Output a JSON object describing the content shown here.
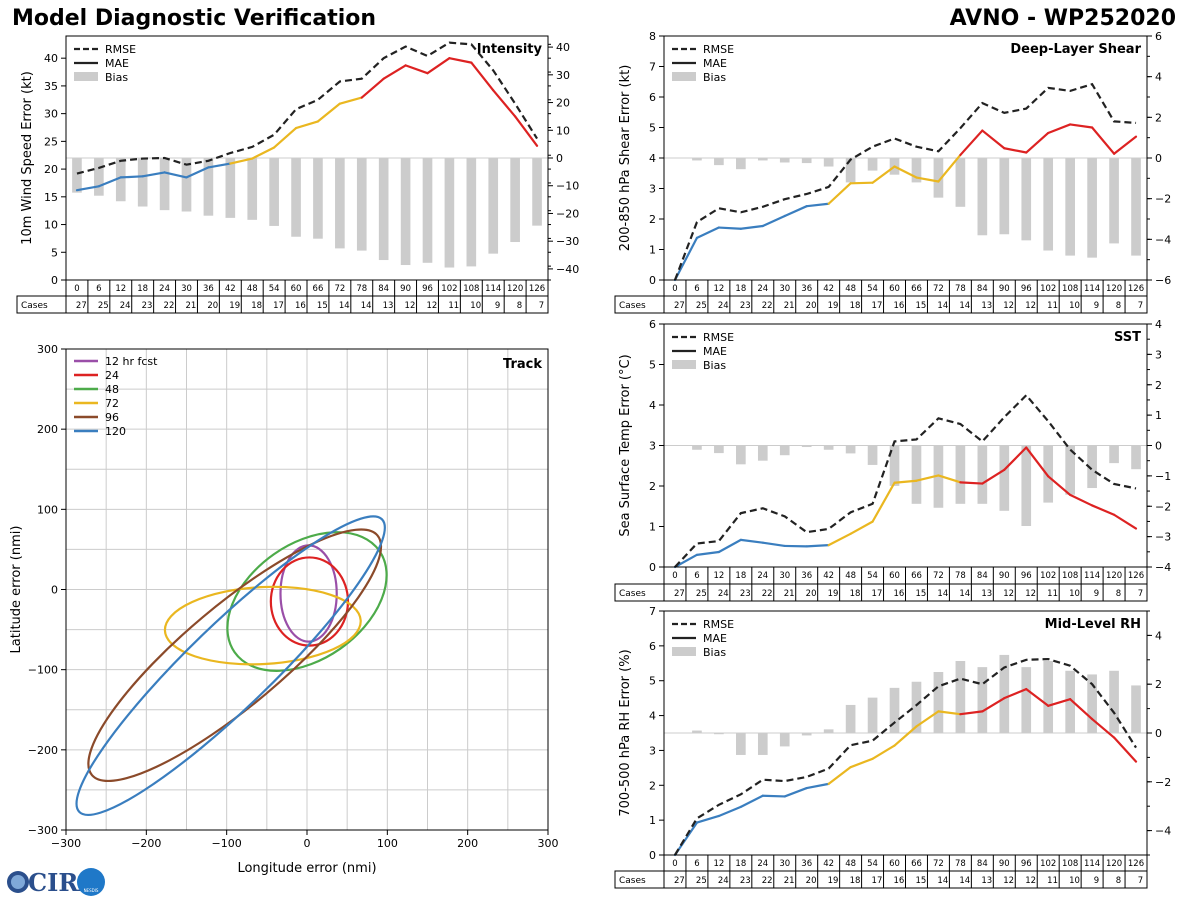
{
  "header": {
    "title": "Model Diagnostic Verification",
    "model_storm": "AVNO - WP252020"
  },
  "logo": {
    "text": "CIRA",
    "small_text": "NESDIS"
  },
  "colors": {
    "rmse": "#222222",
    "bias": "#cccccc",
    "blue": "#3a7ebf",
    "yellow": "#eab720",
    "red": "#dd2222",
    "purple": "#9a4fa8",
    "green": "#4dab4a",
    "brown": "#8b4a2a",
    "grid": "#cccccc"
  },
  "legend": {
    "rmse": "RMSE",
    "mae": "MAE",
    "bias": "Bias"
  },
  "cases_label": "Cases",
  "chart_data": [
    {
      "id": "intensity",
      "type": "line",
      "title": "Intensity",
      "ylabel": "10m Wind Speed Error (kt)",
      "ylim": [
        0,
        44
      ],
      "yticks": [
        0,
        5,
        10,
        15,
        20,
        25,
        30,
        35,
        40
      ],
      "bias_lim": [
        -44,
        44
      ],
      "bias_ticks": [
        -40,
        -30,
        -20,
        -10,
        0,
        10,
        20,
        30,
        40
      ],
      "x": [
        0,
        6,
        12,
        18,
        24,
        30,
        36,
        42,
        48,
        54,
        60,
        66,
        72,
        78,
        84,
        90,
        96,
        102,
        108,
        114,
        120,
        126
      ],
      "cases": [
        27,
        25,
        24,
        23,
        22,
        21,
        20,
        19,
        18,
        17,
        16,
        15,
        14,
        14,
        13,
        12,
        12,
        11,
        10,
        9,
        8,
        7
      ],
      "rmse": [
        19.2,
        20.2,
        21.5,
        21.9,
        22.0,
        20.8,
        21.5,
        22.9,
        24.0,
        26.2,
        30.8,
        32.5,
        35.8,
        36.3,
        40.0,
        42.1,
        40.4,
        42.8,
        42.5,
        37.8,
        31.8,
        25.5
      ],
      "mae": [
        16.2,
        16.9,
        18.5,
        18.7,
        19.4,
        18.5,
        20.3,
        21.0,
        21.9,
        23.9,
        27.4,
        28.6,
        31.8,
        32.9,
        36.3,
        38.7,
        37.3,
        40.0,
        39.2,
        34.2,
        29.5,
        24.2
      ],
      "bias": [
        -12.5,
        -13.6,
        -15.6,
        -17.5,
        -18.8,
        -19.3,
        -20.8,
        -21.6,
        -22.3,
        -24.5,
        -28.4,
        -29.1,
        -32.6,
        -33.4,
        -36.8,
        -38.6,
        -37.8,
        -39.5,
        -39.1,
        -34.5,
        -30.3,
        -24.4
      ]
    },
    {
      "id": "shear",
      "type": "line",
      "title": "Deep-Layer Shear",
      "ylabel": "200-850 hPa Shear Error (kt)",
      "ylim": [
        0,
        8
      ],
      "yticks": [
        0,
        1,
        2,
        3,
        4,
        5,
        6,
        7,
        8
      ],
      "bias_lim": [
        -6,
        6
      ],
      "bias_ticks": [
        -6,
        -4,
        -2,
        0,
        2,
        4,
        6
      ],
      "x": [
        0,
        6,
        12,
        18,
        24,
        30,
        36,
        42,
        48,
        54,
        60,
        66,
        72,
        78,
        84,
        90,
        96,
        102,
        108,
        114,
        120,
        126
      ],
      "cases": [
        27,
        25,
        24,
        23,
        22,
        21,
        20,
        19,
        18,
        17,
        16,
        15,
        14,
        14,
        13,
        12,
        12,
        11,
        10,
        9,
        8,
        7
      ],
      "rmse": [
        0,
        1.9,
        2.35,
        2.22,
        2.4,
        2.65,
        2.82,
        3.05,
        3.95,
        4.37,
        4.64,
        4.37,
        4.22,
        4.98,
        5.8,
        5.48,
        5.62,
        6.3,
        6.2,
        6.42,
        5.2,
        5.15
      ],
      "mae": [
        0,
        1.38,
        1.72,
        1.68,
        1.77,
        2.1,
        2.42,
        2.5,
        3.17,
        3.19,
        3.72,
        3.36,
        3.23,
        4.1,
        4.9,
        4.32,
        4.18,
        4.82,
        5.1,
        5.0,
        4.14,
        4.7
      ],
      "bias": [
        0,
        -0.12,
        -0.35,
        -0.55,
        -0.12,
        -0.22,
        -0.25,
        -0.42,
        -1.2,
        -0.62,
        -0.82,
        -1.2,
        -1.95,
        -2.4,
        -3.8,
        -3.75,
        -4.05,
        -4.55,
        -4.8,
        -4.9,
        -4.2,
        -4.8
      ]
    },
    {
      "id": "sst",
      "type": "line",
      "title": "SST",
      "ylabel": "Sea Surface Temp Error (°C)",
      "ylim": [
        0,
        6
      ],
      "yticks": [
        0,
        1,
        2,
        3,
        4,
        5,
        6
      ],
      "bias_lim": [
        -4,
        4
      ],
      "bias_ticks": [
        -4,
        -3,
        -2,
        -1,
        0,
        1,
        2,
        3,
        4
      ],
      "x": [
        0,
        6,
        12,
        18,
        24,
        30,
        36,
        42,
        48,
        54,
        60,
        66,
        72,
        78,
        84,
        90,
        96,
        102,
        108,
        114,
        120,
        126
      ],
      "cases": [
        27,
        25,
        24,
        23,
        22,
        21,
        20,
        19,
        18,
        17,
        16,
        15,
        14,
        14,
        13,
        12,
        12,
        11,
        10,
        9,
        8,
        7
      ],
      "rmse": [
        0,
        0.58,
        0.64,
        1.33,
        1.45,
        1.25,
        0.86,
        0.94,
        1.35,
        1.56,
        3.1,
        3.15,
        3.67,
        3.53,
        3.1,
        3.7,
        4.24,
        3.6,
        2.9,
        2.4,
        2.05,
        1.94
      ],
      "mae": [
        0,
        0.3,
        0.37,
        0.67,
        0.6,
        0.52,
        0.51,
        0.54,
        0.82,
        1.12,
        2.08,
        2.13,
        2.26,
        2.09,
        2.06,
        2.4,
        2.95,
        2.24,
        1.78,
        1.52,
        1.29,
        0.95
      ],
      "bias": [
        0,
        -0.14,
        -0.25,
        -0.62,
        -0.5,
        -0.32,
        -0.05,
        -0.14,
        -0.26,
        -0.64,
        -1.33,
        -1.92,
        -2.05,
        -1.92,
        -1.92,
        -2.15,
        -2.65,
        -1.88,
        -1.62,
        -1.4,
        -0.58,
        -0.78
      ]
    },
    {
      "id": "rh",
      "type": "line",
      "title": "Mid-Level RH",
      "ylabel": "700-500 hPa RH Error (%)",
      "ylim": [
        0,
        7
      ],
      "yticks": [
        0,
        1,
        2,
        3,
        4,
        5,
        6,
        7
      ],
      "bias_lim": [
        -5,
        5
      ],
      "bias_ticks": [
        -4,
        -2,
        0,
        2,
        4
      ],
      "x": [
        0,
        6,
        12,
        18,
        24,
        30,
        36,
        42,
        48,
        54,
        60,
        66,
        72,
        78,
        84,
        90,
        96,
        102,
        108,
        114,
        120,
        126
      ],
      "cases": [
        27,
        25,
        24,
        23,
        22,
        21,
        20,
        19,
        18,
        17,
        16,
        15,
        14,
        14,
        13,
        12,
        12,
        11,
        10,
        9,
        8,
        7
      ],
      "rmse": [
        0,
        1.05,
        1.44,
        1.74,
        2.16,
        2.12,
        2.24,
        2.48,
        3.15,
        3.28,
        3.8,
        4.3,
        4.84,
        5.06,
        4.9,
        5.38,
        5.6,
        5.62,
        5.43,
        4.9,
        4.08,
        3.08
      ],
      "mae": [
        0,
        0.93,
        1.12,
        1.38,
        1.7,
        1.68,
        1.92,
        2.04,
        2.52,
        2.76,
        3.14,
        3.69,
        4.12,
        4.04,
        4.12,
        4.5,
        4.76,
        4.28,
        4.47,
        3.9,
        3.37,
        2.68
      ],
      "bias": [
        0,
        0.1,
        -0.05,
        -0.9,
        -0.9,
        -0.55,
        -0.1,
        0.15,
        1.15,
        1.45,
        1.85,
        2.1,
        2.5,
        2.95,
        2.7,
        3.2,
        2.7,
        2.95,
        2.55,
        2.4,
        2.55,
        1.95
      ]
    },
    {
      "id": "track",
      "type": "scatter",
      "title": "Track",
      "xlabel": "Longitude error (nmi)",
      "ylabel": "Latitude error (nmi)",
      "xlim": [
        -300,
        300
      ],
      "ylim": [
        -300,
        300
      ],
      "xticks": [
        -300,
        -200,
        -100,
        0,
        100,
        200,
        300
      ],
      "yticks": [
        -300,
        -200,
        -100,
        0,
        100,
        200,
        300
      ],
      "ellipses": [
        {
          "label": "12 hr fcst",
          "color_key": "purple",
          "cx": 2,
          "cy": -5,
          "rx": 35,
          "ry": 60,
          "angle": 0
        },
        {
          "label": "24",
          "color_key": "red",
          "cx": 3,
          "cy": -15,
          "rx": 48,
          "ry": 55,
          "angle": 0
        },
        {
          "label": "48",
          "color_key": "green",
          "cx": 0,
          "cy": -15,
          "rx": 110,
          "ry": 72,
          "angle": 35
        },
        {
          "label": "72",
          "color_key": "yellow",
          "cx": -55,
          "cy": -45,
          "rx": 122,
          "ry": 48,
          "angle": 3
        },
        {
          "label": "96",
          "color_key": "brown",
          "cx": -90,
          "cy": -82,
          "rx": 232,
          "ry": 62,
          "angle": 40
        },
        {
          "label": "120",
          "color_key": "blue",
          "cx": -95,
          "cy": -95,
          "rx": 262,
          "ry": 52,
          "angle": 44
        }
      ]
    }
  ]
}
